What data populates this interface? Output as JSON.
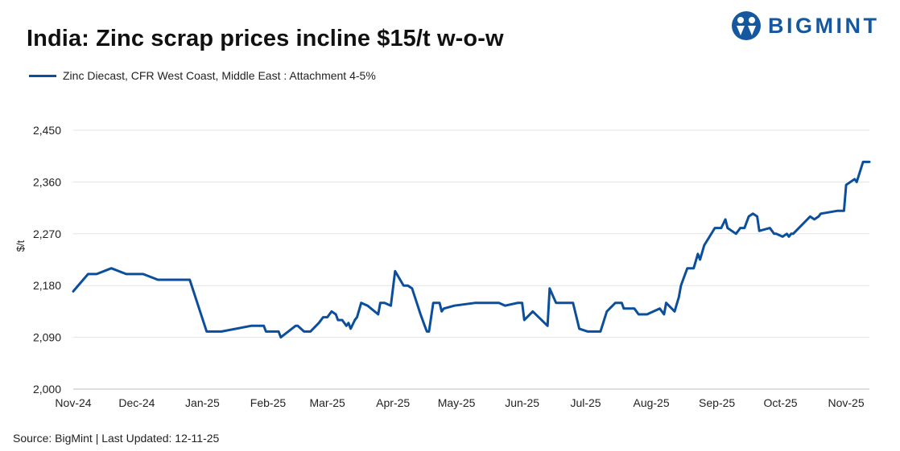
{
  "header": {
    "title": "India: Zinc scrap prices incline $15/t w-o-w",
    "logo_text": "BIGMINT"
  },
  "footer": {
    "source": "Source: BigMint | Last Updated: 12-11-25"
  },
  "colors": {
    "series": "#0b4f9c",
    "brand": "#15589f",
    "grid": "#e3e3e3",
    "axis": "#bdbdbd"
  },
  "chart_data": {
    "type": "line",
    "xlabel": "",
    "ylabel": "$/t",
    "ylim": [
      2000,
      2450
    ],
    "yticks": [
      2000,
      2090,
      2180,
      2270,
      2360,
      2450
    ],
    "ytick_labels": [
      "2,000",
      "2,090",
      "2,180",
      "2,270",
      "2,360",
      "2,450"
    ],
    "xlim": [
      "2024-11-01",
      "2025-11-12"
    ],
    "xticks": [
      "2024-11-01",
      "2024-12-01",
      "2025-01-01",
      "2025-02-01",
      "2025-03-01",
      "2025-04-01",
      "2025-05-01",
      "2025-06-01",
      "2025-07-01",
      "2025-08-01",
      "2025-09-01",
      "2025-10-01",
      "2025-11-01"
    ],
    "xtick_labels": [
      "Nov-24",
      "Dec-24",
      "Jan-25",
      "Feb-25",
      "Mar-25",
      "Apr-25",
      "May-25",
      "Jun-25",
      "Jul-25",
      "Aug-25",
      "Sep-25",
      "Oct-25",
      "Nov-25"
    ],
    "grid": true,
    "legend_position": "top-left",
    "series": [
      {
        "name": "Zinc Diecast, CFR West Coast, Middle East : Attachment 4-5%",
        "x": [
          "2024-11-01",
          "2024-11-08",
          "2024-11-12",
          "2024-11-19",
          "2024-11-26",
          "2024-12-04",
          "2024-12-11",
          "2024-12-18",
          "2024-12-26",
          "2025-01-03",
          "2025-01-10",
          "2025-01-24",
          "2025-01-30",
          "2025-01-31",
          "2025-02-06",
          "2025-02-07",
          "2025-02-14",
          "2025-02-15",
          "2025-02-18",
          "2025-02-21",
          "2025-02-25",
          "2025-02-27",
          "2025-03-01",
          "2025-03-03",
          "2025-03-05",
          "2025-03-06",
          "2025-03-08",
          "2025-03-10",
          "2025-03-11",
          "2025-03-12",
          "2025-03-14",
          "2025-03-15",
          "2025-03-17",
          "2025-03-20",
          "2025-03-25",
          "2025-03-26",
          "2025-03-28",
          "2025-03-31",
          "2025-04-02",
          "2025-04-06",
          "2025-04-08",
          "2025-04-10",
          "2025-04-14",
          "2025-04-16",
          "2025-04-17",
          "2025-04-18",
          "2025-04-20",
          "2025-04-23",
          "2025-04-24",
          "2025-04-25",
          "2025-04-30",
          "2025-05-10",
          "2025-05-21",
          "2025-05-24",
          "2025-05-30",
          "2025-06-01",
          "2025-06-02",
          "2025-06-06",
          "2025-06-13",
          "2025-06-14",
          "2025-06-17",
          "2025-06-25",
          "2025-06-28",
          "2025-07-02",
          "2025-07-03",
          "2025-07-08",
          "2025-07-11",
          "2025-07-15",
          "2025-07-18",
          "2025-07-19",
          "2025-07-21",
          "2025-07-23",
          "2025-07-24",
          "2025-07-26",
          "2025-07-27",
          "2025-07-30",
          "2025-08-05",
          "2025-08-07",
          "2025-08-08",
          "2025-08-12",
          "2025-08-14",
          "2025-08-15",
          "2025-08-16",
          "2025-08-18",
          "2025-08-21",
          "2025-08-23",
          "2025-08-24",
          "2025-08-26",
          "2025-08-31",
          "2025-09-03",
          "2025-09-05",
          "2025-09-06",
          "2025-09-10",
          "2025-09-12",
          "2025-09-14",
          "2025-09-16",
          "2025-09-18",
          "2025-09-20",
          "2025-09-21",
          "2025-09-26",
          "2025-09-28",
          "2025-09-29",
          "2025-10-02",
          "2025-10-04",
          "2025-10-05",
          "2025-10-06",
          "2025-10-07",
          "2025-10-15",
          "2025-10-17",
          "2025-10-19",
          "2025-10-20",
          "2025-10-28",
          "2025-10-31",
          "2025-11-01",
          "2025-11-05",
          "2025-11-06",
          "2025-11-09",
          "2025-11-11",
          "2025-11-12"
        ],
        "values": [
          2170,
          2200,
          2200,
          2210,
          2200,
          2200,
          2190,
          2190,
          2190,
          2100,
          2100,
          2110,
          2110,
          2100,
          2100,
          2090,
          2110,
          2110,
          2100,
          2100,
          2115,
          2125,
          2125,
          2135,
          2130,
          2120,
          2120,
          2110,
          2115,
          2105,
          2120,
          2125,
          2150,
          2145,
          2130,
          2150,
          2150,
          2145,
          2205,
          2180,
          2180,
          2175,
          2130,
          2110,
          2100,
          2100,
          2150,
          2150,
          2135,
          2140,
          2145,
          2150,
          2150,
          2145,
          2150,
          2150,
          2120,
          2135,
          2110,
          2175,
          2150,
          2150,
          2105,
          2100,
          2100,
          2100,
          2135,
          2150,
          2150,
          2140,
          2140,
          2140,
          2140,
          2130,
          2130,
          2130,
          2140,
          2130,
          2150,
          2135,
          2160,
          2180,
          2190,
          2210,
          2210,
          2235,
          2225,
          2250,
          2280,
          2280,
          2295,
          2280,
          2270,
          2280,
          2280,
          2300,
          2305,
          2300,
          2275,
          2280,
          2270,
          2270,
          2265,
          2270,
          2265,
          2270,
          2270,
          2300,
          2295,
          2300,
          2305,
          2310,
          2310,
          2355,
          2365,
          2360,
          2395,
          2395,
          2395
        ]
      }
    ]
  }
}
